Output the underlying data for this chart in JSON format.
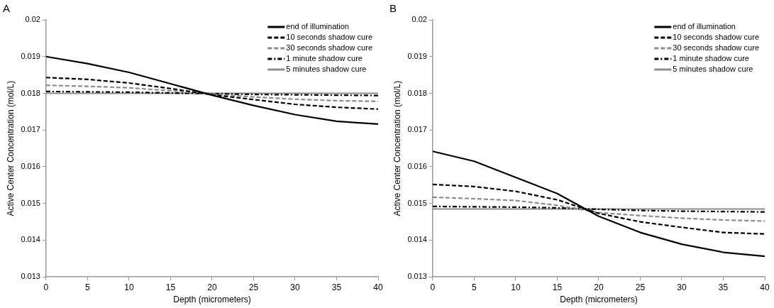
{
  "chart_data": [
    {
      "type": "line",
      "title": "A",
      "xlabel": "Depth (micrometers)",
      "ylabel": "Active Center Concentration (mol/L)",
      "x": [
        0,
        5,
        10,
        15,
        20,
        25,
        30,
        35,
        40
      ],
      "xlim": [
        0,
        40
      ],
      "xticks": [
        0,
        5,
        10,
        15,
        20,
        25,
        30,
        35,
        40
      ],
      "ylim": [
        0.013,
        0.02
      ],
      "yticks": [
        0.013,
        0.014,
        0.015,
        0.016,
        0.017,
        0.018,
        0.019,
        0.02
      ],
      "grid": false,
      "legend": "top right",
      "marker": "none",
      "series": [
        {
          "name": "end of illumination",
          "color": "#000000",
          "line_style": "solid",
          "values": [
            0.019,
            0.01881,
            0.01857,
            0.01826,
            0.01795,
            0.01767,
            0.01742,
            0.01724,
            0.01716
          ]
        },
        {
          "name": "10 seconds shadow cure",
          "color": "#000000",
          "line_style": "dashed",
          "values": [
            0.01843,
            0.01838,
            0.01828,
            0.01813,
            0.01796,
            0.01783,
            0.0177,
            0.01762,
            0.01757
          ]
        },
        {
          "name": "30 seconds shadow cure",
          "color": "#8c8c8c",
          "line_style": "dashed",
          "values": [
            0.01822,
            0.01819,
            0.01815,
            0.01807,
            0.01798,
            0.0179,
            0.01784,
            0.0178,
            0.01778
          ]
        },
        {
          "name": "1 minute shadow cure",
          "color": "#000000",
          "line_style": "dashdot",
          "values": [
            0.01805,
            0.01804,
            0.01803,
            0.01801,
            0.01799,
            0.01797,
            0.01796,
            0.01795,
            0.01794
          ]
        },
        {
          "name": "5 minutes shadow cure",
          "color": "#8c8c8c",
          "line_style": "solid",
          "values": [
            0.018,
            0.018,
            0.018,
            0.018,
            0.018,
            0.018,
            0.018,
            0.018,
            0.018
          ]
        }
      ]
    },
    {
      "type": "line",
      "title": "B",
      "xlabel": "Depth (micrometers)",
      "ylabel": "Active Center Concentration (mol/L)",
      "x": [
        0,
        5,
        10,
        15,
        20,
        25,
        30,
        35,
        40
      ],
      "xlim": [
        0,
        40
      ],
      "xticks": [
        0,
        5,
        10,
        15,
        20,
        25,
        30,
        35,
        40
      ],
      "ylim": [
        0.013,
        0.02
      ],
      "yticks": [
        0.013,
        0.014,
        0.015,
        0.016,
        0.017,
        0.018,
        0.019,
        0.02
      ],
      "grid": false,
      "legend": "top right",
      "marker": "none",
      "series": [
        {
          "name": "end of illumination",
          "color": "#000000",
          "line_style": "solid",
          "values": [
            0.01642,
            0.01615,
            0.01571,
            0.01527,
            0.01465,
            0.01421,
            0.01389,
            0.01367,
            0.01356
          ]
        },
        {
          "name": "10 seconds shadow cure",
          "color": "#000000",
          "line_style": "dashed",
          "values": [
            0.01552,
            0.01546,
            0.01533,
            0.0151,
            0.01473,
            0.0145,
            0.01435,
            0.01421,
            0.01417
          ]
        },
        {
          "name": "30 seconds shadow cure",
          "color": "#8c8c8c",
          "line_style": "dashed",
          "values": [
            0.01517,
            0.01513,
            0.01508,
            0.01495,
            0.01475,
            0.01467,
            0.0146,
            0.01455,
            0.01452
          ]
        },
        {
          "name": "1 minute shadow cure",
          "color": "#000000",
          "line_style": "dashdot",
          "values": [
            0.01492,
            0.01491,
            0.0149,
            0.01488,
            0.01484,
            0.01481,
            0.01479,
            0.01478,
            0.01477
          ]
        },
        {
          "name": "5 minutes shadow cure",
          "color": "#8c8c8c",
          "line_style": "solid",
          "values": [
            0.01485,
            0.01485,
            0.01485,
            0.01485,
            0.01485,
            0.01485,
            0.01485,
            0.01485,
            0.01485
          ]
        }
      ]
    }
  ]
}
